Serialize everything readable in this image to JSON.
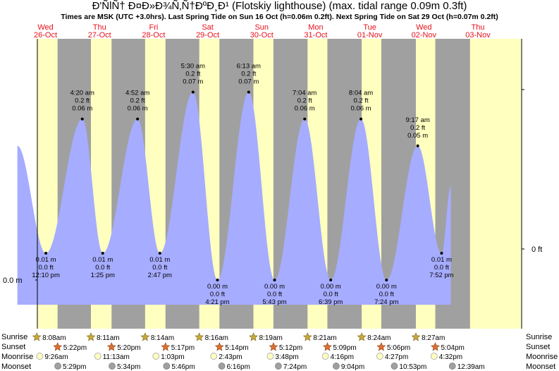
{
  "header": {
    "title": "Ð'ÑlÑ† Ð¤Ð»Ð¾Ñ‚Ñ†ÐºÐ¸Ð¹ (Flotskiy lighthouse) (max. tidal range 0.09m 0.3ft)",
    "subtitle": "Times are MSK (UTC +3.0hrs). Last Spring Tide on Sun 16 Oct (h=0.06m 0.2ft). Next Spring Tide on Sat 29 Oct (h=0.07m 0.2ft)"
  },
  "axes": {
    "left_label": "0.0 m",
    "right_label": "0 ft"
  },
  "rows": {
    "sunrise": "Sunrise",
    "sunset": "Sunset",
    "moonrise": "Moonrise",
    "moonset": "Moonset"
  },
  "chart_data": {
    "type": "area",
    "title": "Ð'ÑlÑ† Ð¤Ð»Ð¾Ñ‚Ñ†ÐºÐ¸Ð¹ (Flotskiy lighthouse) (max. tidal range 0.09m 0.3ft)",
    "x_unit": "hours since Wed 26-Oct 00:00 MSK",
    "y_unit": "m",
    "days": [
      {
        "name": "Wed",
        "date": "26-Oct"
      },
      {
        "name": "Thu",
        "date": "27-Oct"
      },
      {
        "name": "Fri",
        "date": "28-Oct"
      },
      {
        "name": "Sat",
        "date": "29-Oct"
      },
      {
        "name": "Sun",
        "date": "30-Oct"
      },
      {
        "name": "Mon",
        "date": "31-Oct"
      },
      {
        "name": "Tue",
        "date": "01-Nov"
      },
      {
        "name": "Wed",
        "date": "02-Nov"
      },
      {
        "name": "Thu",
        "date": "03-Nov"
      }
    ],
    "tides": [
      {
        "t": -0.5,
        "m": 0.05,
        "type": "start"
      },
      {
        "t": 12.17,
        "m": 0.01,
        "type": "low",
        "labels": [
          "0.01 m",
          "0.0 ft",
          "12:10 pm"
        ]
      },
      {
        "t": 28.33,
        "m": 0.06,
        "type": "high",
        "labels": [
          "4:20 am",
          "0.2 ft",
          "0.06 m"
        ]
      },
      {
        "t": 37.42,
        "m": 0.01,
        "type": "low",
        "labels": [
          "0.01 m",
          "0.0 ft",
          "1:25 pm"
        ]
      },
      {
        "t": 52.87,
        "m": 0.06,
        "type": "high",
        "labels": [
          "4:52 am",
          "0.2 ft",
          "0.06 m"
        ]
      },
      {
        "t": 62.78,
        "m": 0.01,
        "type": "low",
        "labels": [
          "0.01 m",
          "0.0 ft",
          "2:47 pm"
        ]
      },
      {
        "t": 77.5,
        "m": 0.07,
        "type": "high",
        "labels": [
          "5:30 am",
          "0.2 ft",
          "0.07 m"
        ]
      },
      {
        "t": 88.35,
        "m": 0.0,
        "type": "low",
        "labels": [
          "0.00 m",
          "0.0 ft",
          "4:21 pm"
        ]
      },
      {
        "t": 102.22,
        "m": 0.07,
        "type": "high",
        "labels": [
          "6:13 am",
          "0.2 ft",
          "0.07 m"
        ]
      },
      {
        "t": 113.72,
        "m": 0.0,
        "type": "low",
        "labels": [
          "0.00 m",
          "0.0 ft",
          "5:43 pm"
        ]
      },
      {
        "t": 127.07,
        "m": 0.06,
        "type": "high",
        "labels": [
          "7:04 am",
          "0.2 ft",
          "0.06 m"
        ]
      },
      {
        "t": 138.65,
        "m": 0.0,
        "type": "low",
        "labels": [
          "0.00 m",
          "0.0 ft",
          "6:39 pm"
        ]
      },
      {
        "t": 152.07,
        "m": 0.06,
        "type": "high",
        "labels": [
          "8:04 am",
          "0.2 ft",
          "0.06 m"
        ]
      },
      {
        "t": 163.4,
        "m": 0.0,
        "type": "low",
        "labels": [
          "0.00 m",
          "0.0 ft",
          "7:24 pm"
        ]
      },
      {
        "t": 177.28,
        "m": 0.05,
        "type": "high",
        "labels": [
          "9:17 am",
          "0.2 ft",
          "0.05 m"
        ]
      },
      {
        "t": 187.87,
        "m": 0.01,
        "type": "low",
        "labels": [
          "0.01 m",
          "0.0 ft",
          "7:52 pm"
        ]
      },
      {
        "t": 192.0,
        "m": 0.035,
        "type": "end"
      }
    ],
    "sun": [
      {
        "rise": "8:08am",
        "set": "5:22pm",
        "rise_h": 8.13,
        "set_h": 17.37
      },
      {
        "rise": "8:11am",
        "set": "5:20pm",
        "rise_h": 8.18,
        "set_h": 17.33
      },
      {
        "rise": "8:14am",
        "set": "5:17pm",
        "rise_h": 8.23,
        "set_h": 17.28
      },
      {
        "rise": "8:16am",
        "set": "5:14pm",
        "rise_h": 8.27,
        "set_h": 17.23
      },
      {
        "rise": "8:19am",
        "set": "5:12pm",
        "rise_h": 8.32,
        "set_h": 17.2
      },
      {
        "rise": "8:21am",
        "set": "5:09pm",
        "rise_h": 8.35,
        "set_h": 17.15
      },
      {
        "rise": "8:24am",
        "set": "5:06pm",
        "rise_h": 8.4,
        "set_h": 17.1
      },
      {
        "rise": "8:27am",
        "set": "5:04pm",
        "rise_h": 8.45,
        "set_h": 17.07
      }
    ],
    "moonrise": [
      "9:26am",
      "11:13am",
      "1:03pm",
      "2:43pm",
      "3:48pm",
      "4:16pm",
      "4:27pm",
      "4:32pm"
    ],
    "moonset": [
      "5:29pm",
      "5:34pm",
      "5:46pm",
      "6:16pm",
      "7:24pm",
      "9:04pm",
      "10:53pm",
      "12:39am"
    ],
    "ylim": [
      0,
      0.075
    ],
    "colors": {
      "night": "#a0a0a0",
      "day": "#ffffc0",
      "tide": "#a6acff",
      "day_label": "#e8101a",
      "sun_star": "#c8a83a",
      "sunset_star": "#e07030",
      "moonrise": "#ffffc0",
      "moonset": "#a0a0a0"
    }
  }
}
